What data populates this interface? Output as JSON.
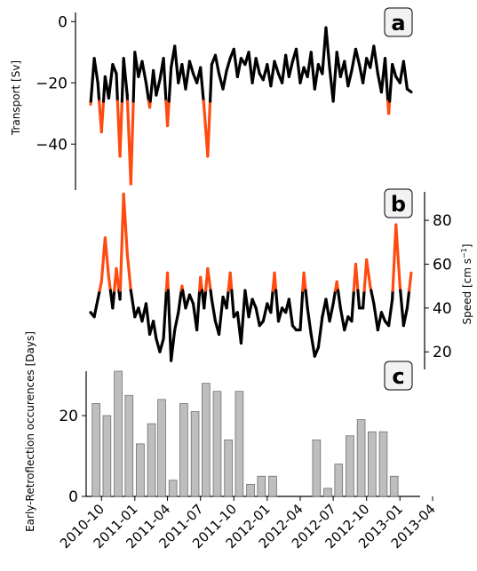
{
  "chart_data": [
    {
      "panel_label": "a",
      "type": "line",
      "ylabel": "Transport [Sv]",
      "ytick_labels": [
        "0",
        "−20",
        "−40"
      ],
      "yticks": [
        0,
        -20,
        -40
      ],
      "ylim": [
        -55,
        3
      ],
      "x_start": "2010-09-01",
      "x_end": "2013-02-01",
      "threshold": -26,
      "colors": {
        "normal": "#000000",
        "highlight": "#ff4a10"
      },
      "x": [
        "2010-09-01",
        "2010-09-11",
        "2010-09-21",
        "2010-10-01",
        "2010-10-11",
        "2010-10-21",
        "2010-11-01",
        "2010-11-11",
        "2010-11-21",
        "2010-12-01",
        "2010-12-11",
        "2010-12-21",
        "2011-01-01",
        "2011-01-11",
        "2011-01-21",
        "2011-02-01",
        "2011-02-11",
        "2011-02-21",
        "2011-03-01",
        "2011-03-11",
        "2011-03-21",
        "2011-04-01",
        "2011-04-11",
        "2011-04-21",
        "2011-05-01",
        "2011-05-11",
        "2011-05-21",
        "2011-06-01",
        "2011-06-11",
        "2011-06-21",
        "2011-07-01",
        "2011-07-11",
        "2011-07-21",
        "2011-08-01",
        "2011-08-11",
        "2011-08-21",
        "2011-09-01",
        "2011-09-11",
        "2011-09-21",
        "2011-10-01",
        "2011-10-11",
        "2011-10-21",
        "2011-11-01",
        "2011-11-11",
        "2011-11-21",
        "2011-12-01",
        "2011-12-11",
        "2011-12-21",
        "2012-01-01",
        "2012-01-11",
        "2012-01-21",
        "2012-02-01",
        "2012-02-11",
        "2012-02-21",
        "2012-03-01",
        "2012-03-11",
        "2012-03-21",
        "2012-04-01",
        "2012-04-11",
        "2012-04-21",
        "2012-05-01",
        "2012-05-11",
        "2012-05-21",
        "2012-06-01",
        "2012-06-11",
        "2012-06-21",
        "2012-07-01",
        "2012-07-11",
        "2012-07-21",
        "2012-08-01",
        "2012-08-11",
        "2012-08-21",
        "2012-09-01",
        "2012-09-11",
        "2012-09-21",
        "2012-10-01",
        "2012-10-11",
        "2012-10-21",
        "2012-11-01",
        "2012-11-11",
        "2012-11-21",
        "2012-12-01",
        "2012-12-11",
        "2012-12-21",
        "2013-01-01",
        "2013-01-11",
        "2013-01-21",
        "2013-02-01"
      ],
      "values": [
        -27,
        -12,
        -20,
        -36,
        -18,
        -25,
        -14,
        -17,
        -44,
        -12,
        -24,
        -53,
        -10,
        -18,
        -13,
        -20,
        -28,
        -16,
        -24,
        -19,
        -12,
        -34,
        -15,
        -8,
        -20,
        -14,
        -22,
        -13,
        -17,
        -20,
        -15,
        -28,
        -44,
        -14,
        -11,
        -17,
        -22,
        -16,
        -12,
        -9,
        -18,
        -12,
        -14,
        -10,
        -20,
        -12,
        -17,
        -19,
        -14,
        -21,
        -13,
        -17,
        -20,
        -11,
        -18,
        -13,
        -9,
        -20,
        -15,
        -18,
        -10,
        -22,
        -14,
        -17,
        -2,
        -15,
        -26,
        -10,
        -18,
        -13,
        -21,
        -16,
        -9,
        -14,
        -20,
        -12,
        -15,
        -8,
        -17,
        -23,
        -12,
        -30,
        -14,
        -18,
        -20,
        -13,
        -22,
        -23
      ]
    },
    {
      "panel_label": "b",
      "type": "line",
      "ylabel": "Speed [cm s⁻¹]",
      "ylabel_base": "Speed [cm s",
      "ylabel_sup": "−1",
      "ylabel_end": "]",
      "ytick_labels": [
        "20",
        "40",
        "60",
        "80"
      ],
      "yticks": [
        20,
        40,
        60,
        80
      ],
      "ylim": [
        12,
        93
      ],
      "x_start": "2010-09-01",
      "x_end": "2013-02-01",
      "threshold": 48,
      "colors": {
        "normal": "#000000",
        "highlight": "#ff4a10"
      },
      "x": [
        "2010-09-01",
        "2010-09-11",
        "2010-09-21",
        "2010-10-01",
        "2010-10-11",
        "2010-10-21",
        "2010-11-01",
        "2010-11-11",
        "2010-11-21",
        "2010-12-01",
        "2010-12-11",
        "2010-12-21",
        "2011-01-01",
        "2011-01-11",
        "2011-01-21",
        "2011-02-01",
        "2011-02-11",
        "2011-02-21",
        "2011-03-01",
        "2011-03-11",
        "2011-03-21",
        "2011-04-01",
        "2011-04-11",
        "2011-04-21",
        "2011-05-01",
        "2011-05-11",
        "2011-05-21",
        "2011-06-01",
        "2011-06-11",
        "2011-06-21",
        "2011-07-01",
        "2011-07-11",
        "2011-07-21",
        "2011-08-01",
        "2011-08-11",
        "2011-08-21",
        "2011-09-01",
        "2011-09-11",
        "2011-09-21",
        "2011-10-01",
        "2011-10-11",
        "2011-10-21",
        "2011-11-01",
        "2011-11-11",
        "2011-11-21",
        "2011-12-01",
        "2011-12-11",
        "2011-12-21",
        "2012-01-01",
        "2012-01-11",
        "2012-01-21",
        "2012-02-01",
        "2012-02-11",
        "2012-02-21",
        "2012-03-01",
        "2012-03-11",
        "2012-03-21",
        "2012-04-01",
        "2012-04-11",
        "2012-04-21",
        "2012-05-01",
        "2012-05-11",
        "2012-05-21",
        "2012-06-01",
        "2012-06-11",
        "2012-06-21",
        "2012-07-01",
        "2012-07-11",
        "2012-07-21",
        "2012-08-01",
        "2012-08-11",
        "2012-08-21",
        "2012-09-01",
        "2012-09-11",
        "2012-09-21",
        "2012-10-01",
        "2012-10-11",
        "2012-10-21",
        "2012-11-01",
        "2012-11-11",
        "2012-11-21",
        "2012-12-01",
        "2012-12-11",
        "2012-12-21",
        "2013-01-01",
        "2013-01-11",
        "2013-01-21",
        "2013-02-01"
      ],
      "values": [
        38,
        36,
        44,
        52,
        72,
        54,
        40,
        58,
        44,
        92,
        65,
        48,
        36,
        40,
        34,
        42,
        28,
        34,
        26,
        20,
        26,
        56,
        16,
        30,
        38,
        50,
        40,
        46,
        42,
        30,
        54,
        40,
        58,
        44,
        34,
        28,
        45,
        40,
        56,
        36,
        38,
        24,
        48,
        36,
        44,
        40,
        32,
        34,
        42,
        38,
        56,
        34,
        40,
        38,
        44,
        32,
        30,
        30,
        56,
        40,
        28,
        18,
        22,
        36,
        44,
        34,
        42,
        52,
        40,
        30,
        36,
        34,
        60,
        40,
        40,
        62,
        50,
        42,
        30,
        38,
        34,
        32,
        44,
        78,
        50,
        32,
        40,
        56
      ]
    },
    {
      "panel_label": "c",
      "type": "bar",
      "ylabel": "Early-Retroflection occurences [Days]",
      "ytick_labels": [
        "0",
        "20"
      ],
      "yticks": [
        0,
        20
      ],
      "ylim": [
        0,
        31
      ],
      "x_start": "2010-09-01",
      "x_end": "2013-04-01",
      "xtick_labels": [
        "2010-10",
        "2011-01",
        "2011-04",
        "2011-07",
        "2011-10",
        "2012-01",
        "2012-04",
        "2012-07",
        "2012-10",
        "2013-01",
        "2013-04"
      ],
      "colors": {
        "bar": "#bebebe",
        "edge": "#6e6e6e"
      },
      "months": [
        "2010-09",
        "2010-10",
        "2010-11",
        "2010-12",
        "2011-01",
        "2011-02",
        "2011-03",
        "2011-04",
        "2011-05",
        "2011-06",
        "2011-07",
        "2011-08",
        "2011-09",
        "2011-10",
        "2011-11",
        "2011-12",
        "2012-01",
        "2012-02",
        "2012-03",
        "2012-04",
        "2012-05",
        "2012-06",
        "2012-07",
        "2012-08",
        "2012-09",
        "2012-10",
        "2012-11",
        "2012-12",
        "2013-01"
      ],
      "values": [
        23,
        20,
        31,
        25,
        13,
        18,
        24,
        4,
        23,
        21,
        28,
        26,
        14,
        26,
        3,
        5,
        5,
        null,
        null,
        null,
        14,
        2,
        8,
        15,
        19,
        16,
        16,
        5,
        null
      ]
    }
  ]
}
